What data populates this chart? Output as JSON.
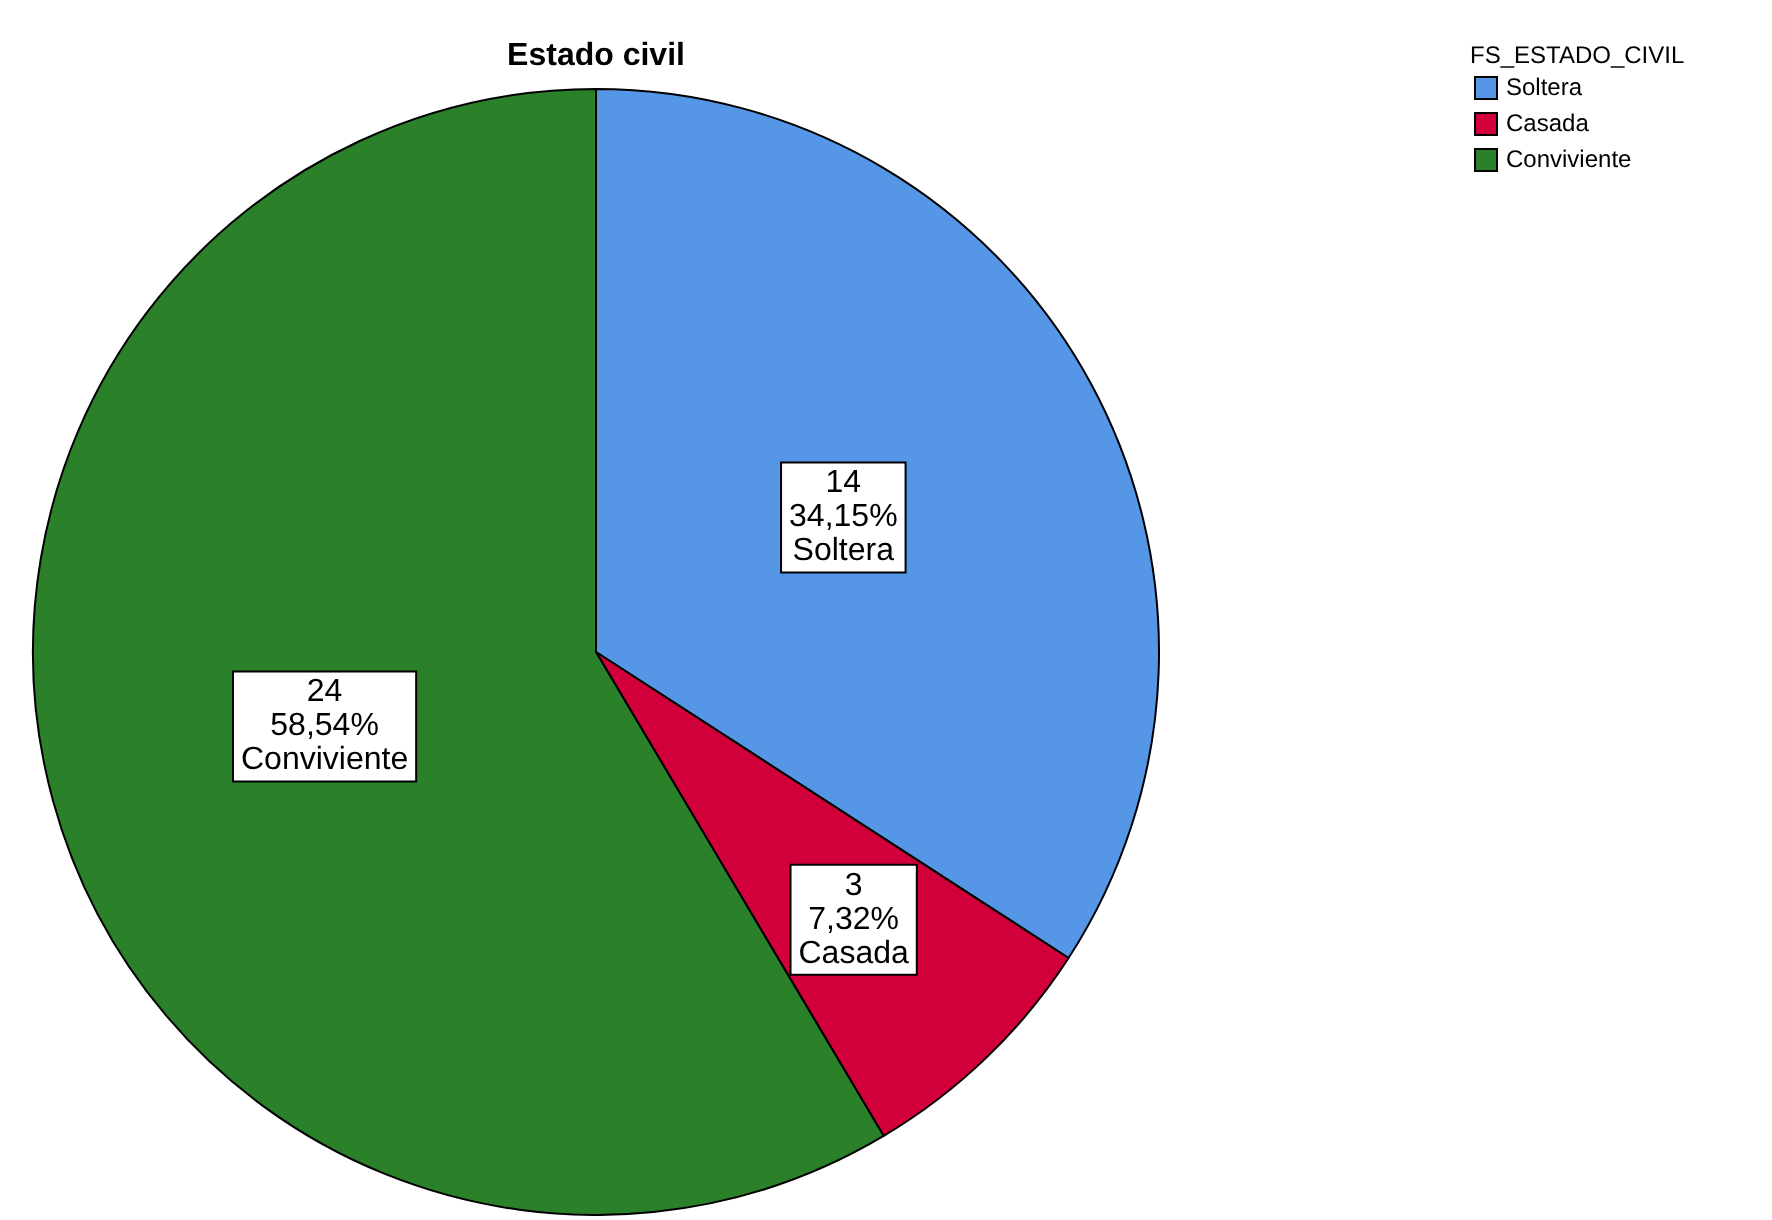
{
  "chart_data": {
    "type": "pie",
    "title": "Estado civil",
    "legend_title": "FS_ESTADO_CIVIL",
    "legend": "top right",
    "categories": [
      "Soltera",
      "Casada",
      "Conviviente"
    ],
    "values": [
      14,
      3,
      24
    ],
    "colors": [
      "#5596e6",
      "#d2003a",
      "#2a812a"
    ],
    "value_labels": [
      "14\n34,15%\nSoltera",
      "3\n7,32%\nCasada",
      "24\n58,54%\nConviviente"
    ]
  }
}
